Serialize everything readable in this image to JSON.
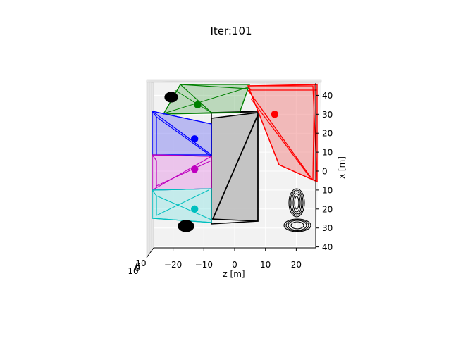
{
  "chart_data": {
    "type": "3d-scatter",
    "title": "Iter:101",
    "xlabel": "z [m]",
    "ylabel": "x [m]",
    "zlabel": "",
    "xlim": [
      -25,
      27
    ],
    "ylim": [
      -46,
      40
    ],
    "x_ticks": [
      -20,
      -10,
      0,
      10,
      20
    ],
    "y_ticks": [
      -40,
      -30,
      -20,
      -10,
      0,
      10,
      20,
      30,
      40
    ],
    "y_tick_labels": [
      "40",
      "30",
      "20",
      "10",
      "0",
      "10",
      "20",
      "30",
      "40"
    ],
    "z_tick_labels": [
      "0",
      "10"
    ],
    "grid": true,
    "boxes": [
      {
        "name": "green",
        "color": "#008000",
        "center": [
          -12,
          -35
        ]
      },
      {
        "name": "red",
        "color": "#ff0000",
        "center": [
          13,
          -30
        ]
      },
      {
        "name": "blue",
        "color": "#0000ff",
        "center": [
          -13,
          -17
        ]
      },
      {
        "name": "magenta",
        "color": "#bf00bf",
        "center": [
          -13,
          -1
        ]
      },
      {
        "name": "cyan",
        "color": "#00bfbf",
        "center": [
          -13,
          20
        ]
      },
      {
        "name": "gray",
        "color": "#000000",
        "center": [
          0,
          0
        ]
      }
    ],
    "points": [
      {
        "x": -12,
        "y": -35,
        "color": "#008000"
      },
      {
        "x": 13,
        "y": -30,
        "color": "#ff0000"
      },
      {
        "x": -13,
        "y": -17,
        "color": "#0000ff"
      },
      {
        "x": -13,
        "y": -1,
        "color": "#bf00bf"
      },
      {
        "x": -13,
        "y": 20,
        "color": "#00bfbf"
      }
    ]
  }
}
